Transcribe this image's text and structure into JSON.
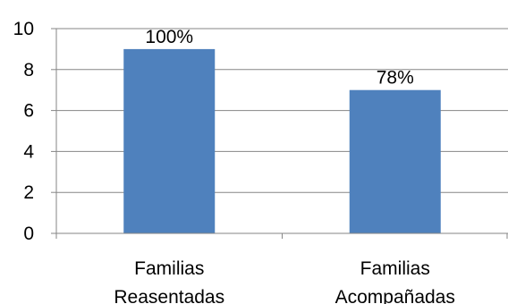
{
  "chart_data": {
    "type": "bar",
    "title": "",
    "xlabel": "",
    "ylabel": "",
    "categories": [
      [
        "Familias",
        "Reasentadas"
      ],
      [
        "Familias",
        "Acompañadas"
      ]
    ],
    "values": [
      9,
      7
    ],
    "data_labels": [
      "100%",
      "78%"
    ],
    "ylim": [
      0,
      10
    ],
    "yticks": [
      0,
      2,
      4,
      6,
      8,
      10
    ],
    "grid": true,
    "legend": "none",
    "colors": {
      "bar": "#4F81BD",
      "grid": "#868686",
      "axis": "#868686",
      "text": "#000000"
    }
  }
}
